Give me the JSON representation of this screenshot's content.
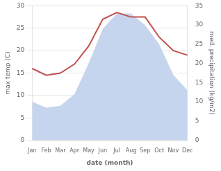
{
  "chart_data": {
    "type": "line",
    "xlabel": "date (month)",
    "ylabel": "max temp (C)",
    "y2label": "med. precipitation (kg/m2)",
    "categories": [
      "Jan",
      "Feb",
      "Mar",
      "Apr",
      "May",
      "Jun",
      "Jul",
      "Aug",
      "Sep",
      "Oct",
      "Nov",
      "Dec"
    ],
    "series": [
      {
        "type": "area",
        "axis": "y2",
        "color": "#c5d5ee",
        "values": [
          10.0,
          8.5,
          9.0,
          12.0,
          20.0,
          29.0,
          33.0,
          33.0,
          30.0,
          25.0,
          17.0,
          13.0
        ]
      },
      {
        "type": "line",
        "color": "#c0504d",
        "values": [
          16.0,
          14.5,
          15.0,
          17.0,
          21.0,
          27.0,
          28.5,
          27.5,
          27.5,
          23.0,
          20.0,
          19.0
        ]
      }
    ],
    "ylim": [
      0,
      30
    ],
    "yticks": [
      0,
      5,
      10,
      15,
      20,
      25,
      30
    ],
    "y2lim": [
      0,
      35
    ],
    "y2ticks": [
      0,
      5,
      10,
      15,
      20,
      25,
      30,
      35
    ],
    "grid": true
  }
}
